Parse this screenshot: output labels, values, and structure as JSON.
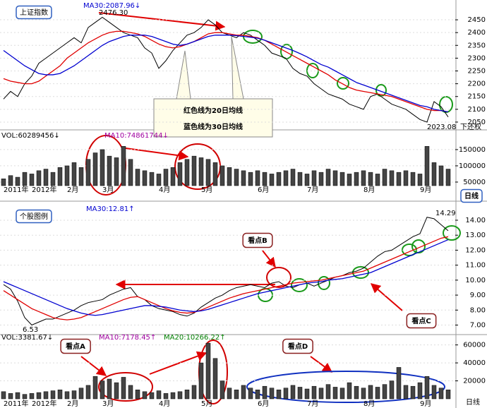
{
  "chart_data": [
    {
      "type": "line",
      "title": "上证指数",
      "annotations": [
        "MA30:2087.96↓",
        "2476.30",
        "2023.08",
        "下还权",
        "红色线为20日均线",
        "蓝色线为30日均线"
      ],
      "ylim": [
        2025,
        2475
      ],
      "yticks": [
        2050,
        2100,
        2150,
        2200,
        2250,
        2300,
        2350,
        2400,
        2450
      ],
      "series": [
        {
          "color": "#000000",
          "values": [
            2140,
            2170,
            2150,
            2200,
            2230,
            2280,
            2300,
            2320,
            2340,
            2360,
            2380,
            2360,
            2420,
            2440,
            2460,
            2440,
            2420,
            2400,
            2390,
            2380,
            2340,
            2320,
            2260,
            2290,
            2330,
            2360,
            2390,
            2400,
            2420,
            2450,
            2430,
            2400,
            2390,
            2380,
            2400,
            2390,
            2370,
            2350,
            2320,
            2310,
            2300,
            2260,
            2240,
            2230,
            2200,
            2180,
            2160,
            2150,
            2140,
            2120,
            2110,
            2100,
            2150,
            2160,
            2140,
            2120,
            2110,
            2100,
            2080,
            2060,
            2050,
            2130,
            2110,
            2070
          ]
        },
        {
          "color": "#e00000",
          "values": [
            2220,
            2210,
            2205,
            2200,
            2200,
            2210,
            2230,
            2250,
            2270,
            2300,
            2320,
            2340,
            2360,
            2375,
            2390,
            2400,
            2405,
            2405,
            2400,
            2395,
            2385,
            2370,
            2355,
            2345,
            2340,
            2345,
            2355,
            2365,
            2380,
            2395,
            2400,
            2400,
            2395,
            2390,
            2390,
            2385,
            2380,
            2370,
            2355,
            2340,
            2325,
            2310,
            2295,
            2280,
            2265,
            2250,
            2235,
            2215,
            2200,
            2185,
            2175,
            2170,
            2165,
            2160,
            2155,
            2150,
            2140,
            2130,
            2120,
            2110,
            2100,
            2095,
            2095,
            2090
          ]
        },
        {
          "color": "#0000d0",
          "values": [
            2330,
            2310,
            2290,
            2270,
            2255,
            2240,
            2235,
            2235,
            2240,
            2255,
            2270,
            2290,
            2310,
            2330,
            2350,
            2365,
            2375,
            2385,
            2390,
            2390,
            2390,
            2385,
            2375,
            2365,
            2355,
            2350,
            2355,
            2365,
            2375,
            2385,
            2390,
            2390,
            2390,
            2388,
            2385,
            2382,
            2378,
            2370,
            2360,
            2350,
            2340,
            2330,
            2318,
            2305,
            2290,
            2275,
            2265,
            2250,
            2235,
            2220,
            2205,
            2195,
            2185,
            2175,
            2165,
            2155,
            2145,
            2135,
            2125,
            2115,
            2110,
            2100,
            2095,
            2090
          ]
        }
      ]
    },
    {
      "type": "bar",
      "annotations": [
        "VOL:60289456↓",
        "MA10:74861744↓",
        "日线"
      ],
      "categories": [
        "2011年",
        null,
        null,
        null,
        "2012年",
        null,
        null,
        null,
        null,
        "2月",
        null,
        null,
        null,
        null,
        "3月",
        null,
        null,
        null,
        null,
        null,
        null,
        null,
        "4月",
        null,
        null,
        null,
        null,
        null,
        "5月",
        null,
        null,
        null,
        null,
        null,
        null,
        null,
        "6月",
        null,
        null,
        null,
        null,
        null,
        null,
        "7月",
        null,
        null,
        null,
        null,
        null,
        null,
        null,
        "8月",
        null,
        null,
        null,
        null,
        null,
        null,
        null,
        "9月",
        null,
        null,
        null,
        null
      ],
      "values": [
        60000,
        70000,
        65000,
        80000,
        75000,
        85000,
        90000,
        80000,
        95000,
        100000,
        110000,
        95000,
        120000,
        140000,
        150000,
        130000,
        125000,
        160000,
        120000,
        90000,
        85000,
        80000,
        75000,
        90000,
        95000,
        110000,
        120000,
        130000,
        125000,
        120000,
        110000,
        100000,
        95000,
        90000,
        85000,
        80000,
        85000,
        80000,
        75000,
        80000,
        85000,
        90000,
        80000,
        75000,
        85000,
        80000,
        90000,
        85000,
        80000,
        75000,
        80000,
        85000,
        80000,
        75000,
        90000,
        85000,
        80000,
        85000,
        80000,
        75000,
        160000,
        110000,
        100000,
        90000
      ],
      "color": "#444444",
      "ylim": [
        39000,
        202000
      ],
      "yticks": [
        50000,
        100000,
        150000
      ]
    },
    {
      "type": "line",
      "title": "个股图例",
      "annotations": [
        "MA30:12.81↑",
        "14.29",
        "6.53",
        "看点B",
        "看点C"
      ],
      "ylim": [
        6.6,
        14.8
      ],
      "yticks": [
        {
          "value": 7,
          "label": "7.00"
        },
        {
          "value": 8,
          "label": "8.00"
        },
        {
          "value": 9,
          "label": "9.00"
        },
        {
          "value": 10,
          "label": "10.00"
        },
        {
          "value": 11,
          "label": "11.00"
        },
        {
          "value": 12,
          "label": "12.00"
        },
        {
          "value": 13,
          "label": "13.00"
        },
        {
          "value": 14,
          "label": "14.00"
        }
      ],
      "series": [
        {
          "color": "#000000",
          "values": [
            9.7,
            9.4,
            8.6,
            7.5,
            7.0,
            7.2,
            7.4,
            7.4,
            7.6,
            7.8,
            8.0,
            8.3,
            8.5,
            8.6,
            8.7,
            9.0,
            9.2,
            9.4,
            9.5,
            8.9,
            8.7,
            8.3,
            8.1,
            8.0,
            7.9,
            7.7,
            7.6,
            7.8,
            8.2,
            8.5,
            8.8,
            9.0,
            9.3,
            9.5,
            9.6,
            9.7,
            9.6,
            9.5,
            9.8,
            9.9,
            9.6,
            9.5,
            9.7,
            9.8,
            9.6,
            9.8,
            10.0,
            10.2,
            10.3,
            10.5,
            10.6,
            10.8,
            11.2,
            11.6,
            11.9,
            12.0,
            12.3,
            12.6,
            12.9,
            13.1,
            14.2,
            14.1,
            13.7,
            13.3
          ]
        },
        {
          "color": "#e00000",
          "values": [
            9.3,
            9.0,
            8.7,
            8.4,
            8.1,
            7.9,
            7.7,
            7.5,
            7.4,
            7.35,
            7.4,
            7.5,
            7.7,
            7.9,
            8.1,
            8.3,
            8.5,
            8.7,
            8.85,
            8.9,
            8.7,
            8.5,
            8.3,
            8.1,
            7.95,
            7.85,
            7.8,
            7.85,
            8.0,
            8.2,
            8.4,
            8.6,
            8.8,
            8.95,
            9.1,
            9.2,
            9.3,
            9.4,
            9.5,
            9.6,
            9.7,
            9.8,
            9.85,
            9.9,
            9.95,
            10.0,
            10.1,
            10.2,
            10.3,
            10.4,
            10.5,
            10.6,
            10.8,
            11.0,
            11.2,
            11.4,
            11.6,
            11.8,
            12.0,
            12.2,
            12.4,
            12.6,
            12.8,
            12.9
          ]
        },
        {
          "color": "#0000d0",
          "values": [
            9.9,
            9.7,
            9.5,
            9.3,
            9.1,
            8.9,
            8.7,
            8.5,
            8.3,
            8.1,
            7.95,
            7.8,
            7.7,
            7.65,
            7.7,
            7.8,
            7.9,
            8.0,
            8.1,
            8.2,
            8.3,
            8.3,
            8.25,
            8.2,
            8.1,
            8.0,
            7.95,
            7.9,
            7.95,
            8.05,
            8.2,
            8.35,
            8.5,
            8.65,
            8.8,
            8.95,
            9.1,
            9.2,
            9.3,
            9.4,
            9.5,
            9.6,
            9.7,
            9.8,
            9.85,
            9.9,
            10.0,
            10.05,
            10.1,
            10.2,
            10.3,
            10.4,
            10.5,
            10.7,
            10.9,
            11.1,
            11.3,
            11.5,
            11.7,
            11.9,
            12.1,
            12.3,
            12.5,
            12.7
          ]
        }
      ]
    },
    {
      "type": "bar",
      "annotations": [
        "VOL:3381.67↓",
        "MA10:7178.45↑",
        "MA20:10266.22↑",
        "看点A",
        "看点D",
        "日线"
      ],
      "categories": [
        "2011年",
        null,
        null,
        null,
        "2012年",
        null,
        null,
        null,
        null,
        "2月",
        null,
        null,
        null,
        null,
        "3月",
        null,
        null,
        null,
        null,
        null,
        null,
        null,
        "4月",
        null,
        null,
        null,
        null,
        null,
        "5月",
        null,
        null,
        null,
        null,
        null,
        null,
        null,
        "6月",
        null,
        null,
        null,
        null,
        null,
        null,
        "7月",
        null,
        null,
        null,
        null,
        null,
        null,
        null,
        "8月",
        null,
        null,
        null,
        null,
        null,
        null,
        null,
        "9月",
        null,
        null,
        null,
        null
      ],
      "values": [
        8000,
        6000,
        7000,
        5000,
        6000,
        7000,
        8000,
        9000,
        10000,
        8000,
        9000,
        12000,
        15000,
        25000,
        20000,
        22000,
        18000,
        24000,
        15000,
        10000,
        8000,
        7000,
        9000,
        6000,
        7000,
        8000,
        10000,
        15000,
        40000,
        62000,
        45000,
        20000,
        12000,
        10000,
        15000,
        12000,
        10000,
        14000,
        12000,
        10000,
        12000,
        15000,
        13000,
        11000,
        14000,
        12000,
        16000,
        13000,
        12000,
        18000,
        14000,
        12000,
        15000,
        13000,
        16000,
        20000,
        35000,
        15000,
        14000,
        18000,
        25000,
        15000,
        12000,
        10000
      ],
      "color": "#444444",
      "ylim": [
        0,
        66000
      ],
      "yticks": [
        20000,
        40000,
        60000
      ]
    }
  ]
}
